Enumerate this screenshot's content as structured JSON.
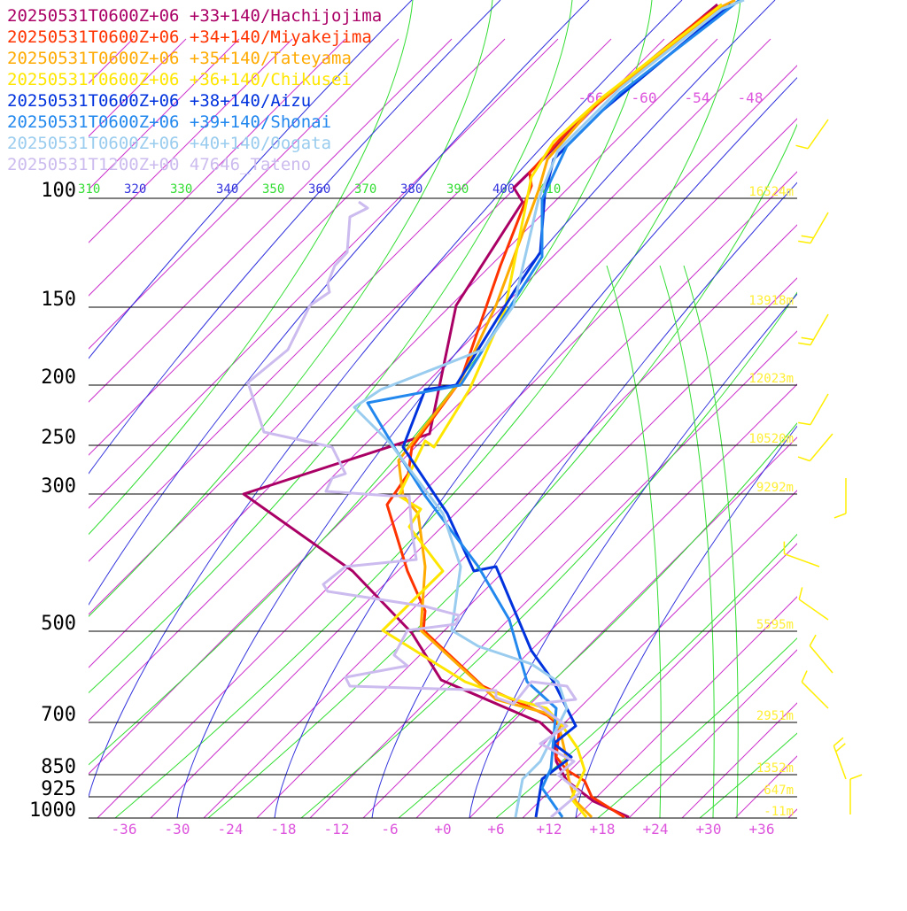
{
  "chart_data": {
    "type": "line",
    "title": "",
    "xlabel": "",
    "ylabel": "",
    "pressure_levels": [
      100,
      150,
      200,
      250,
      300,
      500,
      700,
      850,
      925,
      1000
    ],
    "pressure_labels": [
      "100",
      "150",
      "200",
      "250",
      "300",
      "500",
      "700",
      "850",
      "925",
      "1000"
    ],
    "height_labels": [
      "16524m",
      "13918m",
      "12023m",
      "10520m",
      "9292m",
      "5595m",
      "2951m",
      "1352m",
      "647m",
      "-11m"
    ],
    "x_ticks": [
      "-36",
      "-30",
      "-24",
      "-18",
      "-12",
      "-6",
      "+0",
      "+6",
      "+12",
      "+18",
      "+24",
      "+30",
      "+36"
    ],
    "top_ticks": [
      "-66",
      "-60",
      "-54",
      "-48"
    ],
    "theta_labels": [
      "310",
      "320",
      "330",
      "340",
      "350",
      "360",
      "370",
      "380",
      "390",
      "400",
      "410"
    ],
    "colors": {
      "isotherm": "#cc33cc",
      "dry_adiabat": "#33dd33",
      "moist_adiabat": "#3333dd",
      "height_label": "#ffee33",
      "tick": "#dd55dd",
      "wind_barb": "#ffee00"
    },
    "series": [
      {
        "name": "20250531T0600Z+06 +33+140/Hachijojima",
        "color": "#aa0066",
        "points": [
          [
            710,
            923
          ],
          [
            670,
            905
          ],
          [
            640,
            882
          ],
          [
            628,
            860
          ],
          [
            625,
            830
          ],
          [
            610,
            816
          ],
          [
            600,
            812
          ],
          [
            498,
            768
          ],
          [
            465,
            715
          ],
          [
            398,
            645
          ],
          [
            275,
            558
          ],
          [
            485,
            490
          ],
          [
            515,
            345
          ],
          [
            590,
            228
          ],
          [
            580,
            212
          ],
          [
            615,
            178
          ],
          [
            665,
            125
          ],
          [
            780,
            30
          ],
          [
            810,
            5
          ]
        ]
      },
      {
        "name": "20250531T0600Z+06 +34+140/Miyakejima",
        "color": "#ff3300",
        "points": [
          [
            705,
            923
          ],
          [
            668,
            900
          ],
          [
            660,
            882
          ],
          [
            640,
            870
          ],
          [
            628,
            855
          ],
          [
            632,
            820
          ],
          [
            618,
            808
          ],
          [
            545,
            775
          ],
          [
            478,
            712
          ],
          [
            480,
            690
          ],
          [
            460,
            645
          ],
          [
            437,
            570
          ],
          [
            461,
            535
          ],
          [
            465,
            505
          ],
          [
            520,
            430
          ],
          [
            565,
            300
          ],
          [
            600,
            210
          ],
          [
            598,
            195
          ],
          [
            648,
            140
          ],
          [
            790,
            22
          ],
          [
            815,
            5
          ]
        ]
      },
      {
        "name": "20250531T0600Z+06 +35+140/Tateyama",
        "color": "#ffaa00",
        "points": [
          [
            668,
            923
          ],
          [
            650,
            905
          ],
          [
            642,
            880
          ],
          [
            638,
            850
          ],
          [
            630,
            815
          ],
          [
            615,
            805
          ],
          [
            560,
            790
          ],
          [
            475,
            712
          ],
          [
            480,
            640
          ],
          [
            472,
            580
          ],
          [
            455,
            560
          ],
          [
            450,
            520
          ],
          [
            520,
            430
          ],
          [
            560,
            345
          ],
          [
            608,
            215
          ],
          [
            618,
            180
          ],
          [
            670,
            120
          ],
          [
            810,
            10
          ],
          [
            830,
            0
          ]
        ]
      },
      {
        "name": "20250531T0600Z+06 +36+140/Chikusei",
        "color": "#ffe600",
        "points": [
          [
            662,
            923
          ],
          [
            645,
            902
          ],
          [
            660,
            870
          ],
          [
            652,
            845
          ],
          [
            635,
            820
          ],
          [
            617,
            800
          ],
          [
            580,
            790
          ],
          [
            525,
            770
          ],
          [
            432,
            712
          ],
          [
            500,
            645
          ],
          [
            462,
            595
          ],
          [
            475,
            575
          ],
          [
            450,
            560
          ],
          [
            480,
            498
          ],
          [
            490,
            505
          ],
          [
            530,
            440
          ],
          [
            570,
            350
          ],
          [
            600,
            200
          ],
          [
            625,
            160
          ],
          [
            680,
            110
          ],
          [
            815,
            5
          ]
        ]
      },
      {
        "name": "20250531T0600Z+06 +38+140/Aizu",
        "color": "#0033dd",
        "points": [
          [
            605,
            923
          ],
          [
            612,
            880
          ],
          [
            645,
            855
          ],
          [
            625,
            840
          ],
          [
            650,
            820
          ],
          [
            625,
            770
          ],
          [
            600,
            735
          ],
          [
            560,
            640
          ],
          [
            535,
            645
          ],
          [
            505,
            580
          ],
          [
            455,
            505
          ],
          [
            480,
            440
          ],
          [
            515,
            435
          ],
          [
            580,
            330
          ],
          [
            610,
            285
          ],
          [
            615,
            220
          ],
          [
            625,
            180
          ],
          [
            680,
            125
          ],
          [
            800,
            25
          ],
          [
            825,
            5
          ]
        ]
      },
      {
        "name": "20250531T0600Z+06 +39+140/Shonai",
        "color": "#2288ee",
        "points": [
          [
            635,
            923
          ],
          [
            612,
            890
          ],
          [
            622,
            868
          ],
          [
            628,
            800
          ],
          [
            595,
            770
          ],
          [
            575,
            700
          ],
          [
            540,
            640
          ],
          [
            480,
            560
          ],
          [
            445,
            505
          ],
          [
            415,
            455
          ],
          [
            520,
            435
          ],
          [
            580,
            340
          ],
          [
            612,
            290
          ],
          [
            612,
            225
          ],
          [
            640,
            165
          ],
          [
            700,
            105
          ],
          [
            810,
            20
          ],
          [
            835,
            0
          ]
        ]
      },
      {
        "name": "20250531T0600Z+06 +40+140/Oogata",
        "color": "#99ccee",
        "points": [
          [
            582,
            923
          ],
          [
            590,
            880
          ],
          [
            610,
            860
          ],
          [
            640,
            800
          ],
          [
            630,
            770
          ],
          [
            600,
            750
          ],
          [
            540,
            730
          ],
          [
            510,
            712
          ],
          [
            520,
            640
          ],
          [
            500,
            580
          ],
          [
            440,
            500
          ],
          [
            400,
            460
          ],
          [
            430,
            440
          ],
          [
            545,
            395
          ],
          [
            580,
            345
          ],
          [
            608,
            225
          ],
          [
            630,
            170
          ],
          [
            700,
            100
          ],
          [
            815,
            10
          ],
          [
            840,
            0
          ]
        ]
      },
      {
        "name": "20250531T1200Z+00 47646_Tateno",
        "color": "#ccbbee",
        "points": [
          [
            622,
            923
          ],
          [
            655,
            895
          ],
          [
            630,
            875
          ],
          [
            648,
            860
          ],
          [
            610,
            840
          ],
          [
            640,
            820
          ],
          [
            605,
            795
          ],
          [
            650,
            790
          ],
          [
            640,
            775
          ],
          [
            600,
            770
          ],
          [
            580,
            795
          ],
          [
            560,
            788
          ],
          [
            560,
            780
          ],
          [
            395,
            775
          ],
          [
            390,
            765
          ],
          [
            460,
            752
          ],
          [
            445,
            740
          ],
          [
            460,
            712
          ],
          [
            515,
            705
          ],
          [
            518,
            695
          ],
          [
            480,
            685
          ],
          [
            370,
            668
          ],
          [
            365,
            660
          ],
          [
            390,
            640
          ],
          [
            470,
            632
          ],
          [
            465,
            600
          ],
          [
            462,
            560
          ],
          [
            440,
            560
          ],
          [
            368,
            555
          ],
          [
            375,
            540
          ],
          [
            390,
            535
          ],
          [
            375,
            505
          ],
          [
            298,
            488
          ],
          [
            280,
            432
          ],
          [
            325,
            395
          ],
          [
            350,
            345
          ],
          [
            372,
            330
          ],
          [
            370,
            320
          ],
          [
            378,
            300
          ],
          [
            392,
            285
          ],
          [
            395,
            245
          ],
          [
            415,
            235
          ],
          [
            405,
            228
          ]
        ]
      }
    ],
    "wind_barbs": [
      {
        "x": 935,
        "y": 135,
        "ang": 215,
        "len": 40,
        "fl": 1
      },
      {
        "x": 935,
        "y": 240,
        "ang": 210,
        "len": 40,
        "fl": 2
      },
      {
        "x": 935,
        "y": 355,
        "ang": 210,
        "len": 40,
        "fl": 2
      },
      {
        "x": 935,
        "y": 445,
        "ang": 210,
        "len": 40,
        "fl": 1
      },
      {
        "x": 940,
        "y": 490,
        "ang": 220,
        "len": 40,
        "fl": 1
      },
      {
        "x": 955,
        "y": 540,
        "ang": 180,
        "len": 40,
        "fl": 1
      },
      {
        "x": 925,
        "y": 640,
        "ang": 290,
        "len": 42,
        "fl": 1
      },
      {
        "x": 935,
        "y": 700,
        "ang": 305,
        "len": 40,
        "fl": 1
      },
      {
        "x": 940,
        "y": 760,
        "ang": 320,
        "len": 40,
        "fl": 1
      },
      {
        "x": 935,
        "y": 800,
        "ang": 315,
        "len": 42,
        "fl": 1
      },
      {
        "x": 955,
        "y": 880,
        "ang": 340,
        "len": 40,
        "fl": 2
      },
      {
        "x": 960,
        "y": 920,
        "ang": 0,
        "len": 40,
        "fl": 1
      }
    ]
  }
}
